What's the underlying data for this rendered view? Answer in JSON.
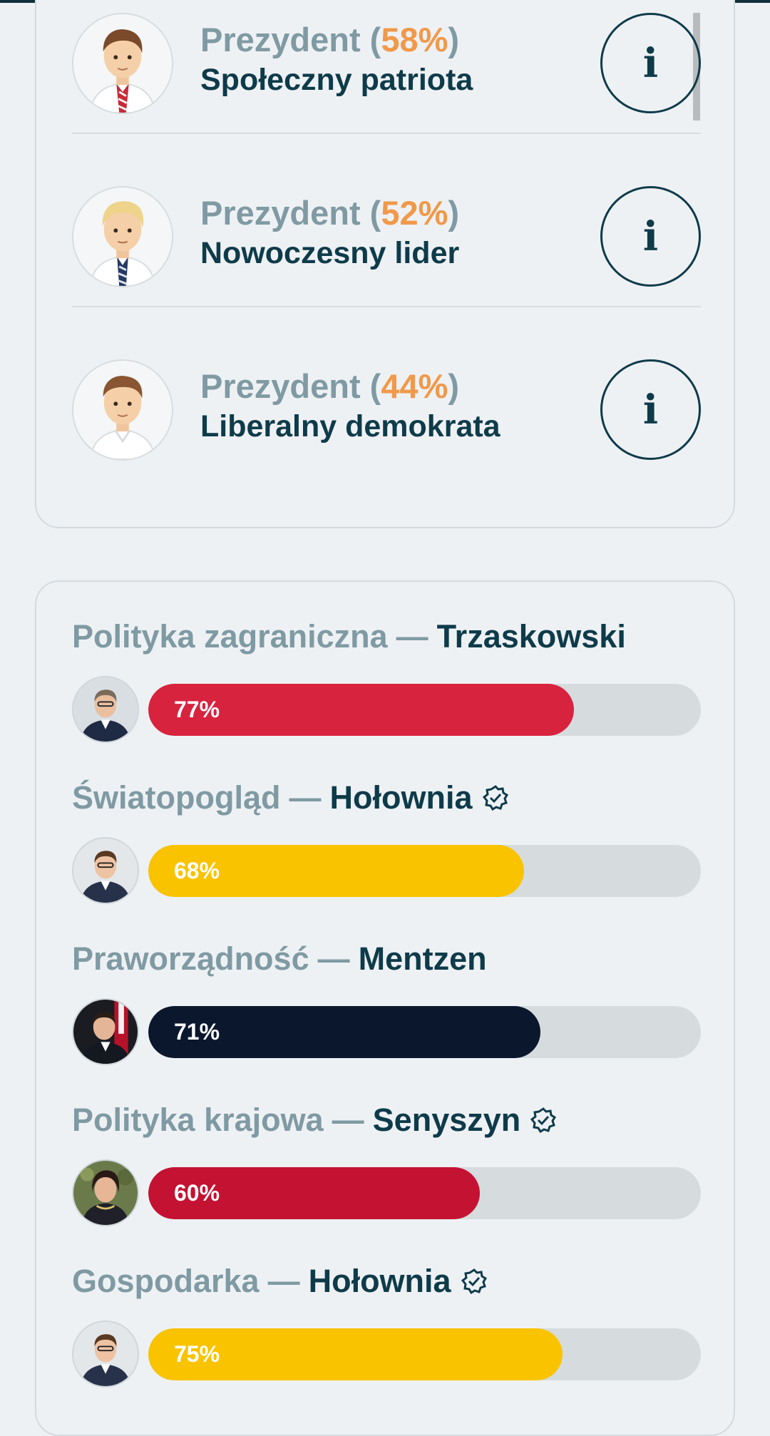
{
  "presidents": [
    {
      "prefix": "Prezydent (",
      "percent": "58%",
      "suffix": ")",
      "type": "Społeczny patriota",
      "avatar_icon": "man-avatar-red-tie-icon"
    },
    {
      "prefix": "Prezydent (",
      "percent": "52%",
      "suffix": ")",
      "type": "Nowoczesny lider",
      "avatar_icon": "man-avatar-blonde-icon"
    },
    {
      "prefix": "Prezydent (",
      "percent": "44%",
      "suffix": ")",
      "type": "Liberalny demokrata",
      "avatar_icon": "man-avatar-casual-icon"
    }
  ],
  "info_button_label": "i",
  "metrics": [
    {
      "category": "Polityka zagraniczna",
      "separator": "—",
      "name": "Trzaskowski",
      "verified": false,
      "value": 77,
      "label": "77%",
      "color": "#d8233f"
    },
    {
      "category": "Światopogląd",
      "separator": "—",
      "name": "Hołownia",
      "verified": true,
      "value": 68,
      "label": "68%",
      "color": "#f9c300"
    },
    {
      "category": "Praworządność",
      "separator": "—",
      "name": "Mentzen",
      "verified": false,
      "value": 71,
      "label": "71%",
      "color": "#0b172d"
    },
    {
      "category": "Polityka krajowa",
      "separator": "—",
      "name": "Senyszyn",
      "verified": true,
      "value": 60,
      "label": "60%",
      "color": "#c41232"
    },
    {
      "category": "Gospodarka",
      "separator": "—",
      "name": "Hołownia",
      "verified": true,
      "value": 75,
      "label": "75%",
      "color": "#f9c300"
    }
  ]
}
